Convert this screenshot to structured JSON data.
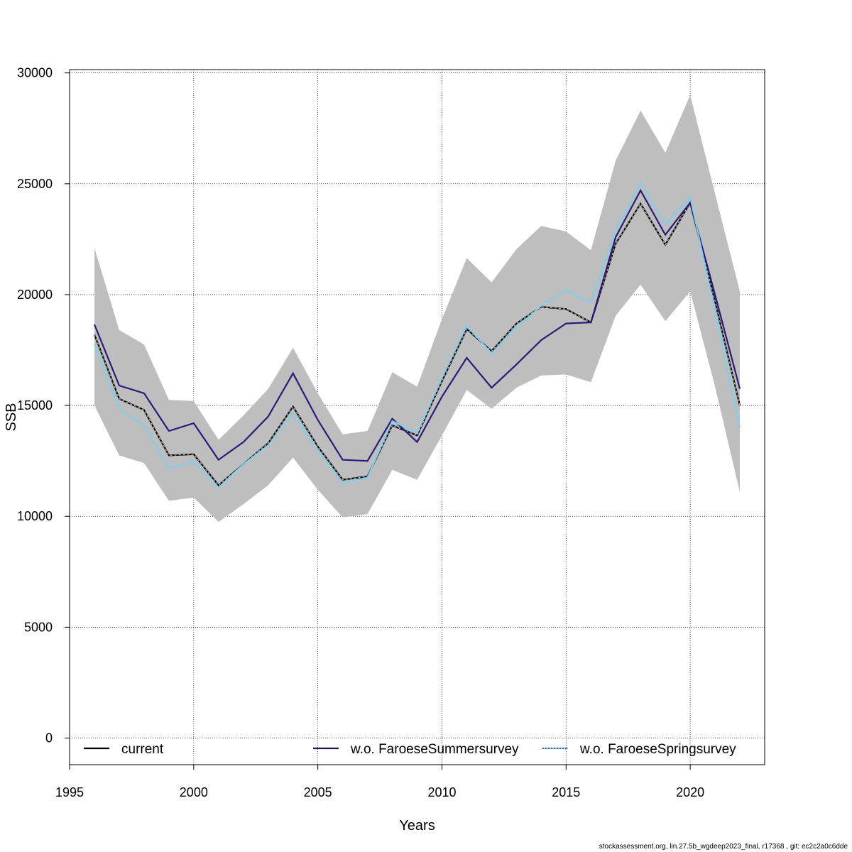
{
  "chart_data": {
    "type": "line",
    "xlabel": "Years",
    "ylabel": "SSB",
    "xlim": [
      1995,
      2023
    ],
    "ylim": [
      -1200,
      30150
    ],
    "x_ticks": [
      1995,
      2000,
      2005,
      2010,
      2015,
      2020
    ],
    "y_ticks": [
      0,
      5000,
      10000,
      15000,
      20000,
      25000,
      30000
    ],
    "grid": true,
    "legend_position": "bottom",
    "x": [
      1996,
      1997,
      1998,
      1999,
      2000,
      2001,
      2002,
      2003,
      2004,
      2005,
      2006,
      2007,
      2008,
      2009,
      2010,
      2011,
      2012,
      2013,
      2014,
      2015,
      2016,
      2017,
      2018,
      2019,
      2020,
      2021,
      2022
    ],
    "band": {
      "lower": [
        15000,
        12750,
        12400,
        10700,
        10850,
        9750,
        10550,
        11400,
        12650,
        11200,
        9950,
        10100,
        12100,
        11650,
        13650,
        15700,
        14850,
        15800,
        16350,
        16400,
        16050,
        19050,
        20450,
        18800,
        20150,
        15850,
        11100
      ],
      "upper": [
        22100,
        18400,
        17750,
        15250,
        15200,
        13450,
        14550,
        15750,
        17600,
        15550,
        13700,
        13850,
        16500,
        15850,
        18900,
        21650,
        20550,
        22050,
        23100,
        22850,
        22000,
        26050,
        28300,
        26400,
        29000,
        24550,
        20150
      ],
      "color": "#bebebe"
    },
    "series": [
      {
        "name": "current",
        "color": "#000000",
        "values": [
          18200,
          15300,
          14800,
          12750,
          12800,
          11400,
          12350,
          13300,
          14950,
          13150,
          11650,
          11800,
          14100,
          13650,
          16100,
          18450,
          17450,
          18700,
          19450,
          19350,
          18750,
          22300,
          24100,
          22250,
          24150,
          19700,
          15000
        ]
      },
      {
        "name": "w.o. FaroeseSummersurvey",
        "color": "#2e1a7a",
        "values": [
          18650,
          15900,
          15550,
          13850,
          14200,
          12550,
          13350,
          14500,
          16450,
          14350,
          12550,
          12500,
          14400,
          13350,
          15400,
          17150,
          15800,
          16850,
          17950,
          18700,
          18750,
          22600,
          24700,
          22700,
          24150,
          20000,
          15750
        ]
      },
      {
        "name": "w.o. FaroeseSpringsurvey",
        "color": "#7fcfef",
        "values": [
          17750,
          14850,
          14100,
          12150,
          12450,
          11300,
          12350,
          13200,
          14650,
          12950,
          11500,
          11750,
          14300,
          13750,
          16250,
          18600,
          17350,
          18500,
          19500,
          20200,
          19650,
          22900,
          25050,
          23150,
          24400,
          19250,
          14000
        ]
      }
    ]
  },
  "footer_text": "stockassessment.org, lin.27.5b_wgdeep2023_final, r17368 , git: ec2c2a0c6dde"
}
